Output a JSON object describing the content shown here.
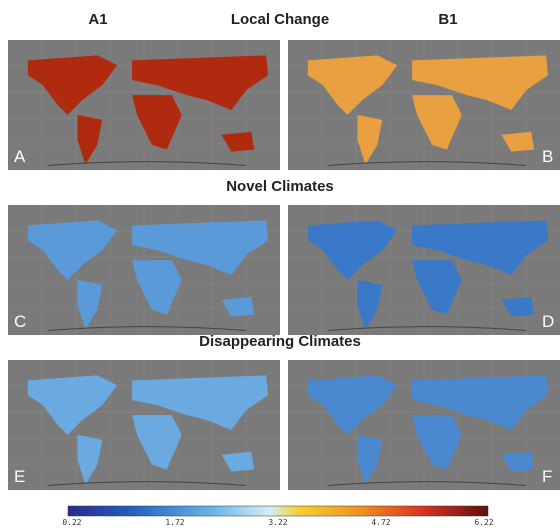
{
  "column_headers": [
    "A1",
    "B1"
  ],
  "row_titles": [
    "Local Change",
    "Novel Climates",
    "Disappearing Climates"
  ],
  "panels": [
    "A",
    "B",
    "C",
    "D",
    "E",
    "F"
  ],
  "colorbar": {
    "labels": [
      "0.22",
      "1.72",
      "3.22",
      "4.72",
      "6.22"
    ]
  }
}
